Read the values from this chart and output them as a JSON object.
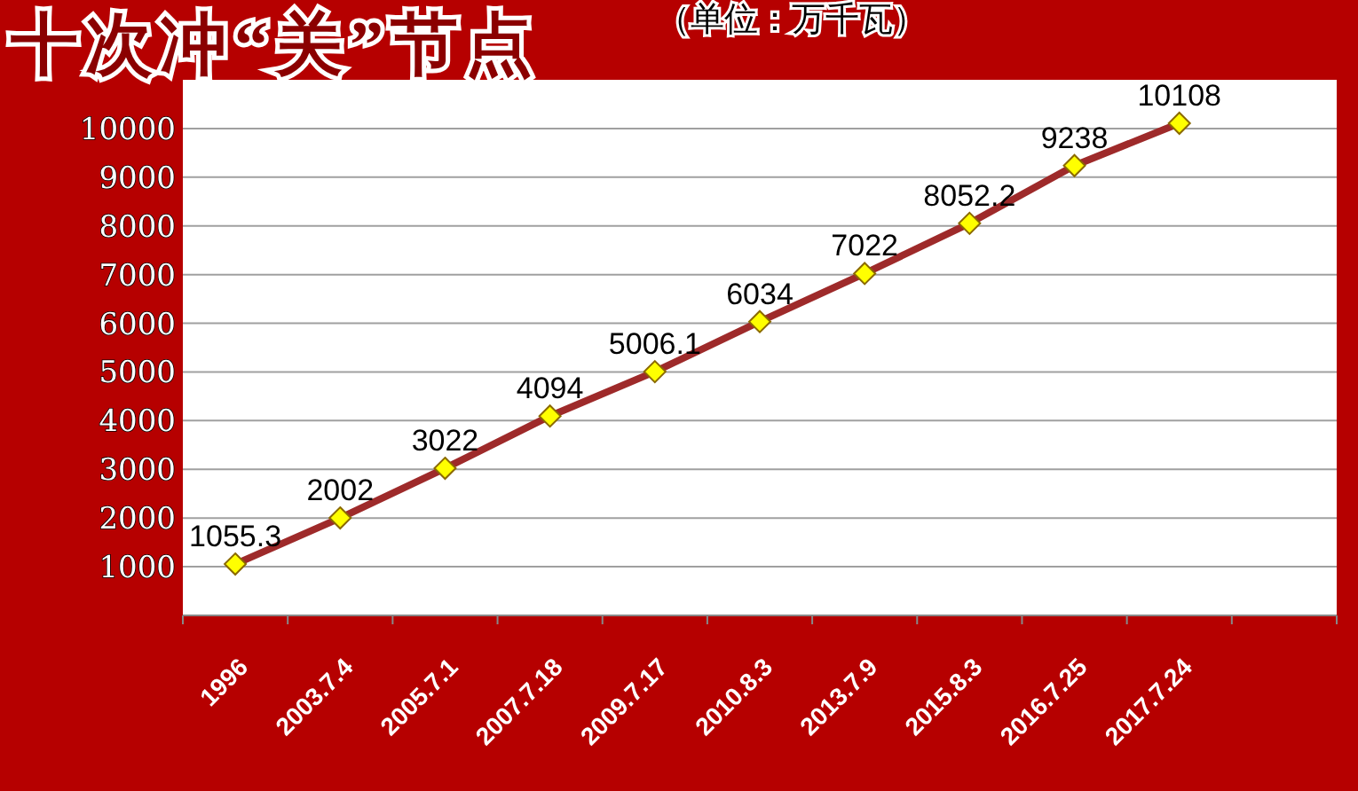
{
  "chart_data": {
    "type": "line",
    "title": "十次冲“关”节点",
    "subtitle": "（单位：万千瓦）",
    "categories": [
      "1996",
      "2003.7.4",
      "2005.7.1",
      "2007.7.18",
      "2009.7.17",
      "2010.8.3",
      "2013.7.9",
      "2015.8.3",
      "2016.7.25",
      "2017.7.24",
      null
    ],
    "series": [
      {
        "color": "#9e2a2a",
        "values": [
          1055.3,
          2002,
          3022,
          4094,
          5006.1,
          6034,
          7022,
          8052.2,
          9238,
          10108,
          null
        ]
      }
    ],
    "ylim": [
      0,
      11000
    ],
    "yticks": [
      1000,
      2000,
      3000,
      4000,
      5000,
      6000,
      7000,
      8000,
      9000,
      10000
    ],
    "grid": "y",
    "marker": "diamond",
    "data_labels": true
  }
}
